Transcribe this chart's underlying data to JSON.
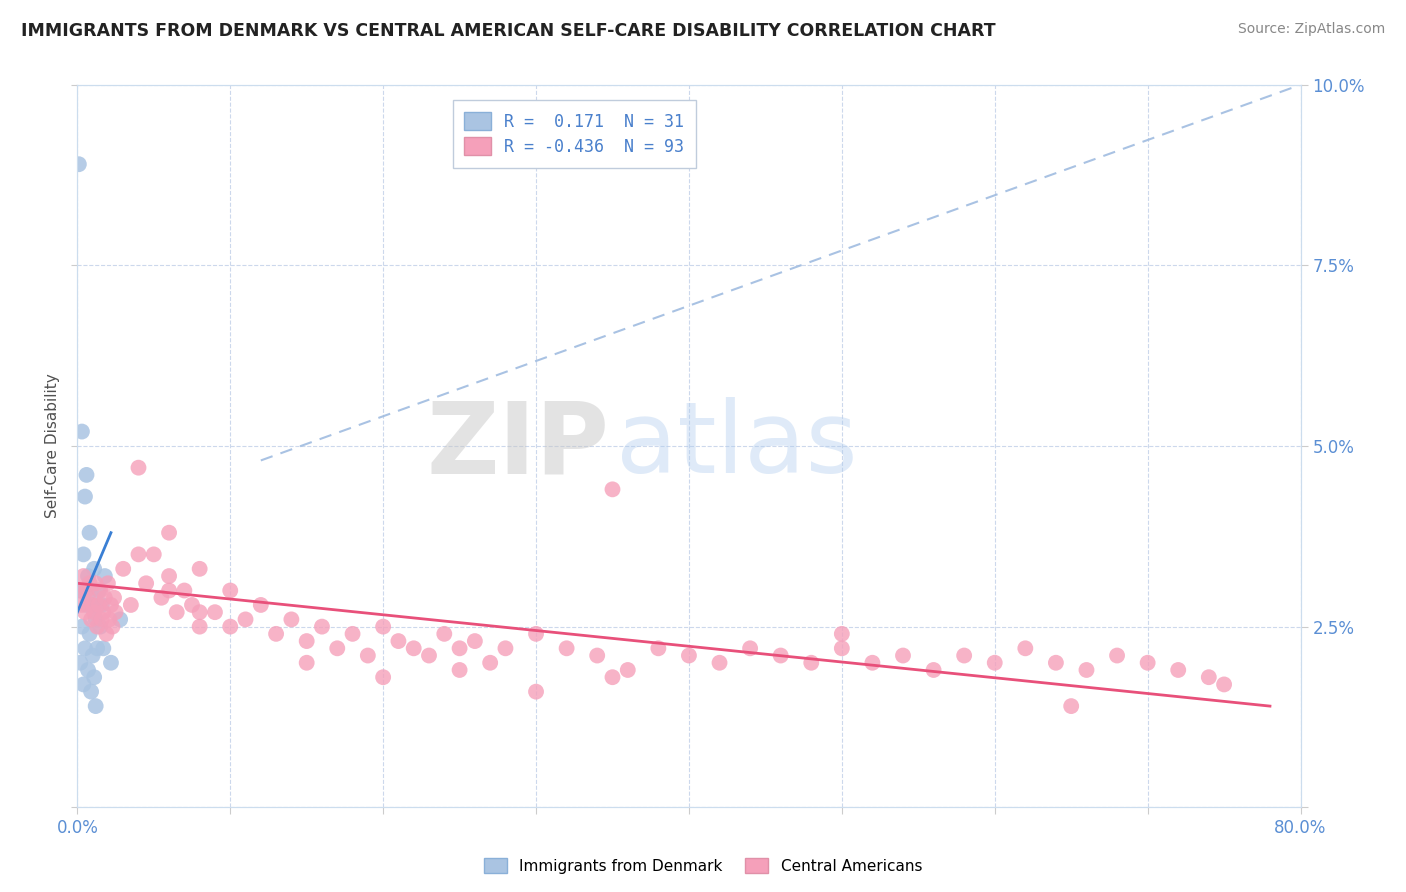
{
  "title": "IMMIGRANTS FROM DENMARK VS CENTRAL AMERICAN SELF-CARE DISABILITY CORRELATION CHART",
  "source": "Source: ZipAtlas.com",
  "ylabel": "Self-Care Disability",
  "xlim": [
    0.0,
    0.8
  ],
  "ylim": [
    0.0,
    0.1
  ],
  "legend_r1": "R =  0.171  N = 31",
  "legend_r2": "R = -0.436  N = 93",
  "blue_color": "#aac4e2",
  "pink_color": "#f5a0ba",
  "blue_line_color": "#3a7fd4",
  "pink_line_color": "#e8507a",
  "diag_line_color": "#a0bce0",
  "background_color": "#ffffff",
  "grid_color": "#ccd8ec",
  "watermark_zip": "ZIP",
  "watermark_atlas": "atlas",
  "blue_scatter_x": [
    0.001,
    0.002,
    0.002,
    0.003,
    0.003,
    0.004,
    0.004,
    0.005,
    0.005,
    0.006,
    0.006,
    0.007,
    0.007,
    0.008,
    0.008,
    0.009,
    0.009,
    0.01,
    0.01,
    0.011,
    0.011,
    0.012,
    0.012,
    0.013,
    0.014,
    0.015,
    0.016,
    0.017,
    0.018,
    0.022,
    0.028
  ],
  "blue_scatter_y": [
    0.089,
    0.03,
    0.02,
    0.052,
    0.025,
    0.035,
    0.017,
    0.043,
    0.022,
    0.046,
    0.028,
    0.032,
    0.019,
    0.038,
    0.024,
    0.03,
    0.016,
    0.028,
    0.021,
    0.033,
    0.018,
    0.026,
    0.014,
    0.022,
    0.03,
    0.025,
    0.028,
    0.022,
    0.032,
    0.02,
    0.026
  ],
  "pink_scatter_x": [
    0.002,
    0.003,
    0.004,
    0.005,
    0.006,
    0.007,
    0.008,
    0.009,
    0.01,
    0.011,
    0.012,
    0.013,
    0.014,
    0.015,
    0.016,
    0.017,
    0.018,
    0.019,
    0.02,
    0.021,
    0.022,
    0.023,
    0.024,
    0.025,
    0.03,
    0.035,
    0.04,
    0.045,
    0.05,
    0.055,
    0.06,
    0.065,
    0.07,
    0.075,
    0.08,
    0.09,
    0.1,
    0.11,
    0.12,
    0.13,
    0.14,
    0.15,
    0.16,
    0.17,
    0.18,
    0.19,
    0.2,
    0.21,
    0.22,
    0.23,
    0.24,
    0.25,
    0.26,
    0.27,
    0.28,
    0.3,
    0.32,
    0.34,
    0.36,
    0.38,
    0.4,
    0.42,
    0.44,
    0.46,
    0.48,
    0.5,
    0.52,
    0.54,
    0.56,
    0.58,
    0.6,
    0.62,
    0.64,
    0.66,
    0.68,
    0.7,
    0.72,
    0.74,
    0.06,
    0.08,
    0.1,
    0.15,
    0.2,
    0.25,
    0.3,
    0.35,
    0.04,
    0.06,
    0.08,
    0.35,
    0.5,
    0.65,
    0.75
  ],
  "pink_scatter_y": [
    0.03,
    0.028,
    0.032,
    0.027,
    0.03,
    0.029,
    0.031,
    0.026,
    0.028,
    0.027,
    0.031,
    0.025,
    0.028,
    0.03,
    0.026,
    0.027,
    0.029,
    0.024,
    0.031,
    0.026,
    0.028,
    0.025,
    0.029,
    0.027,
    0.033,
    0.028,
    0.047,
    0.031,
    0.035,
    0.029,
    0.032,
    0.027,
    0.03,
    0.028,
    0.025,
    0.027,
    0.03,
    0.026,
    0.028,
    0.024,
    0.026,
    0.023,
    0.025,
    0.022,
    0.024,
    0.021,
    0.025,
    0.023,
    0.022,
    0.021,
    0.024,
    0.022,
    0.023,
    0.02,
    0.022,
    0.024,
    0.022,
    0.021,
    0.019,
    0.022,
    0.021,
    0.02,
    0.022,
    0.021,
    0.02,
    0.022,
    0.02,
    0.021,
    0.019,
    0.021,
    0.02,
    0.022,
    0.02,
    0.019,
    0.021,
    0.02,
    0.019,
    0.018,
    0.03,
    0.027,
    0.025,
    0.02,
    0.018,
    0.019,
    0.016,
    0.018,
    0.035,
    0.038,
    0.033,
    0.044,
    0.024,
    0.014,
    0.017
  ],
  "blue_line_x": [
    0.0,
    0.022
  ],
  "blue_line_y": [
    0.027,
    0.038
  ],
  "pink_line_x": [
    0.0,
    0.78
  ],
  "pink_line_y": [
    0.031,
    0.014
  ],
  "diag_line_x": [
    0.12,
    0.8
  ],
  "diag_line_y": [
    0.048,
    0.1
  ]
}
